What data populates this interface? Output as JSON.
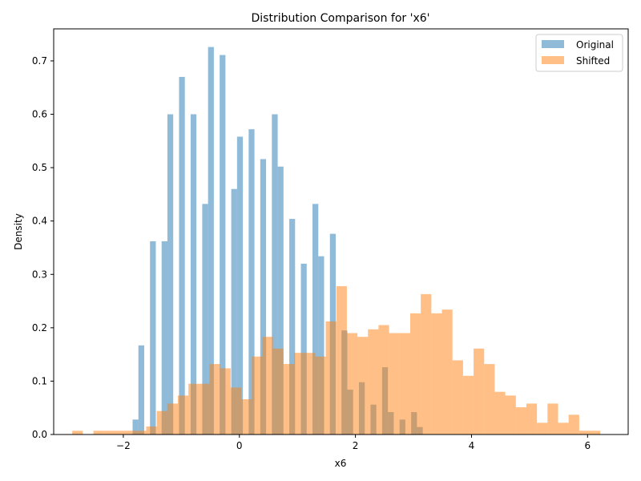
{
  "chart_data": {
    "type": "bar",
    "title": "Distribution Comparison for 'x6'",
    "xlabel": "x6",
    "ylabel": "Density",
    "xlim": [
      -3.2,
      6.7
    ],
    "ylim": [
      0,
      0.76
    ],
    "xticks": [
      -2,
      0,
      2,
      4,
      6
    ],
    "xtick_labels": [
      "−2",
      "0",
      "2",
      "4",
      "6"
    ],
    "yticks": [
      0.0,
      0.1,
      0.2,
      0.3,
      0.4,
      0.5,
      0.6,
      0.7
    ],
    "ytick_labels": [
      "0.0",
      "0.1",
      "0.2",
      "0.3",
      "0.4",
      "0.5",
      "0.6",
      "0.7"
    ],
    "grid": false,
    "legend_position": "top-right",
    "series": [
      {
        "name": "Original",
        "color": "#1f77b4",
        "opacity": 0.5,
        "bin_start": -1.84,
        "bin_width": 0.1,
        "values": [
          0.028,
          0.167,
          0,
          0.362,
          0,
          0.362,
          0.6,
          0,
          0.67,
          0,
          0.6,
          0,
          0.432,
          0.726,
          0,
          0.711,
          0,
          0.46,
          0.558,
          0,
          0.572,
          0,
          0.516,
          0,
          0.6,
          0.502,
          0,
          0.404,
          0,
          0.32,
          0,
          0.432,
          0.334,
          0,
          0.376,
          0,
          0.195,
          0.084,
          0,
          0.098,
          0,
          0.056,
          0,
          0.126,
          0.042,
          0,
          0.028,
          0,
          0.042,
          0.014
        ]
      },
      {
        "name": "Shifted",
        "color": "#ff7f0e",
        "opacity": 0.5,
        "bin_start": -2.88,
        "bin_width": 0.182,
        "values": [
          0.007,
          0,
          0.007,
          0.007,
          0.007,
          0.007,
          0.007,
          0.015,
          0.044,
          0.058,
          0.073,
          0.095,
          0.095,
          0.132,
          0.124,
          0.088,
          0.066,
          0.146,
          0.183,
          0.161,
          0.132,
          0.153,
          0.153,
          0.146,
          0.212,
          0.278,
          0.19,
          0.183,
          0.197,
          0.205,
          0.19,
          0.19,
          0.227,
          0.263,
          0.227,
          0.234,
          0.139,
          0.11,
          0.161,
          0.132,
          0.08,
          0.073,
          0.051,
          0.058,
          0.022,
          0.058,
          0.022,
          0.037,
          0.007,
          0.007
        ]
      }
    ]
  }
}
